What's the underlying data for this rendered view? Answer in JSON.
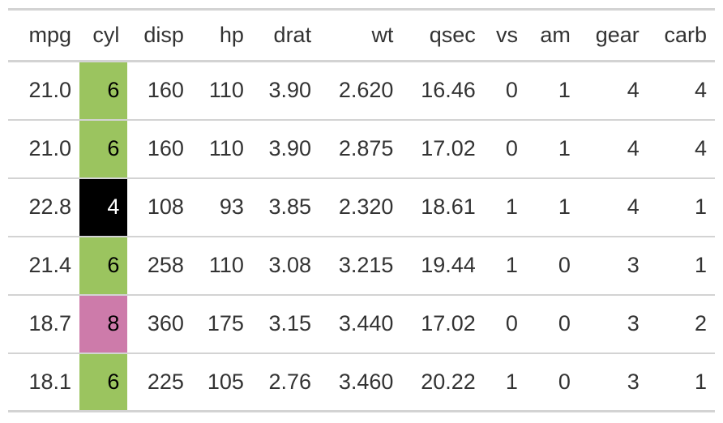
{
  "columns": [
    "mpg",
    "cyl",
    "disp",
    "hp",
    "drat",
    "wt",
    "qsec",
    "vs",
    "am",
    "gear",
    "carb"
  ],
  "cyl_colors": {
    "4": "#000000",
    "6": "#9BC45F",
    "8": "#CD7BAA"
  },
  "cyl_text_colors": {
    "4": "#FFFFFF",
    "6": "#000000",
    "8": "#000000"
  },
  "rows": [
    [
      "21.0",
      "6",
      "160",
      "110",
      "3.90",
      "2.620",
      "16.46",
      "0",
      "1",
      "4",
      "4"
    ],
    [
      "21.0",
      "6",
      "160",
      "110",
      "3.90",
      "2.875",
      "17.02",
      "0",
      "1",
      "4",
      "4"
    ],
    [
      "22.8",
      "4",
      "108",
      "93",
      "3.85",
      "2.320",
      "18.61",
      "1",
      "1",
      "4",
      "1"
    ],
    [
      "21.4",
      "6",
      "258",
      "110",
      "3.08",
      "3.215",
      "19.44",
      "1",
      "0",
      "3",
      "1"
    ],
    [
      "18.7",
      "8",
      "360",
      "175",
      "3.15",
      "3.440",
      "17.02",
      "0",
      "0",
      "3",
      "2"
    ],
    [
      "18.1",
      "6",
      "225",
      "105",
      "2.76",
      "3.460",
      "20.22",
      "1",
      "0",
      "3",
      "1"
    ]
  ]
}
